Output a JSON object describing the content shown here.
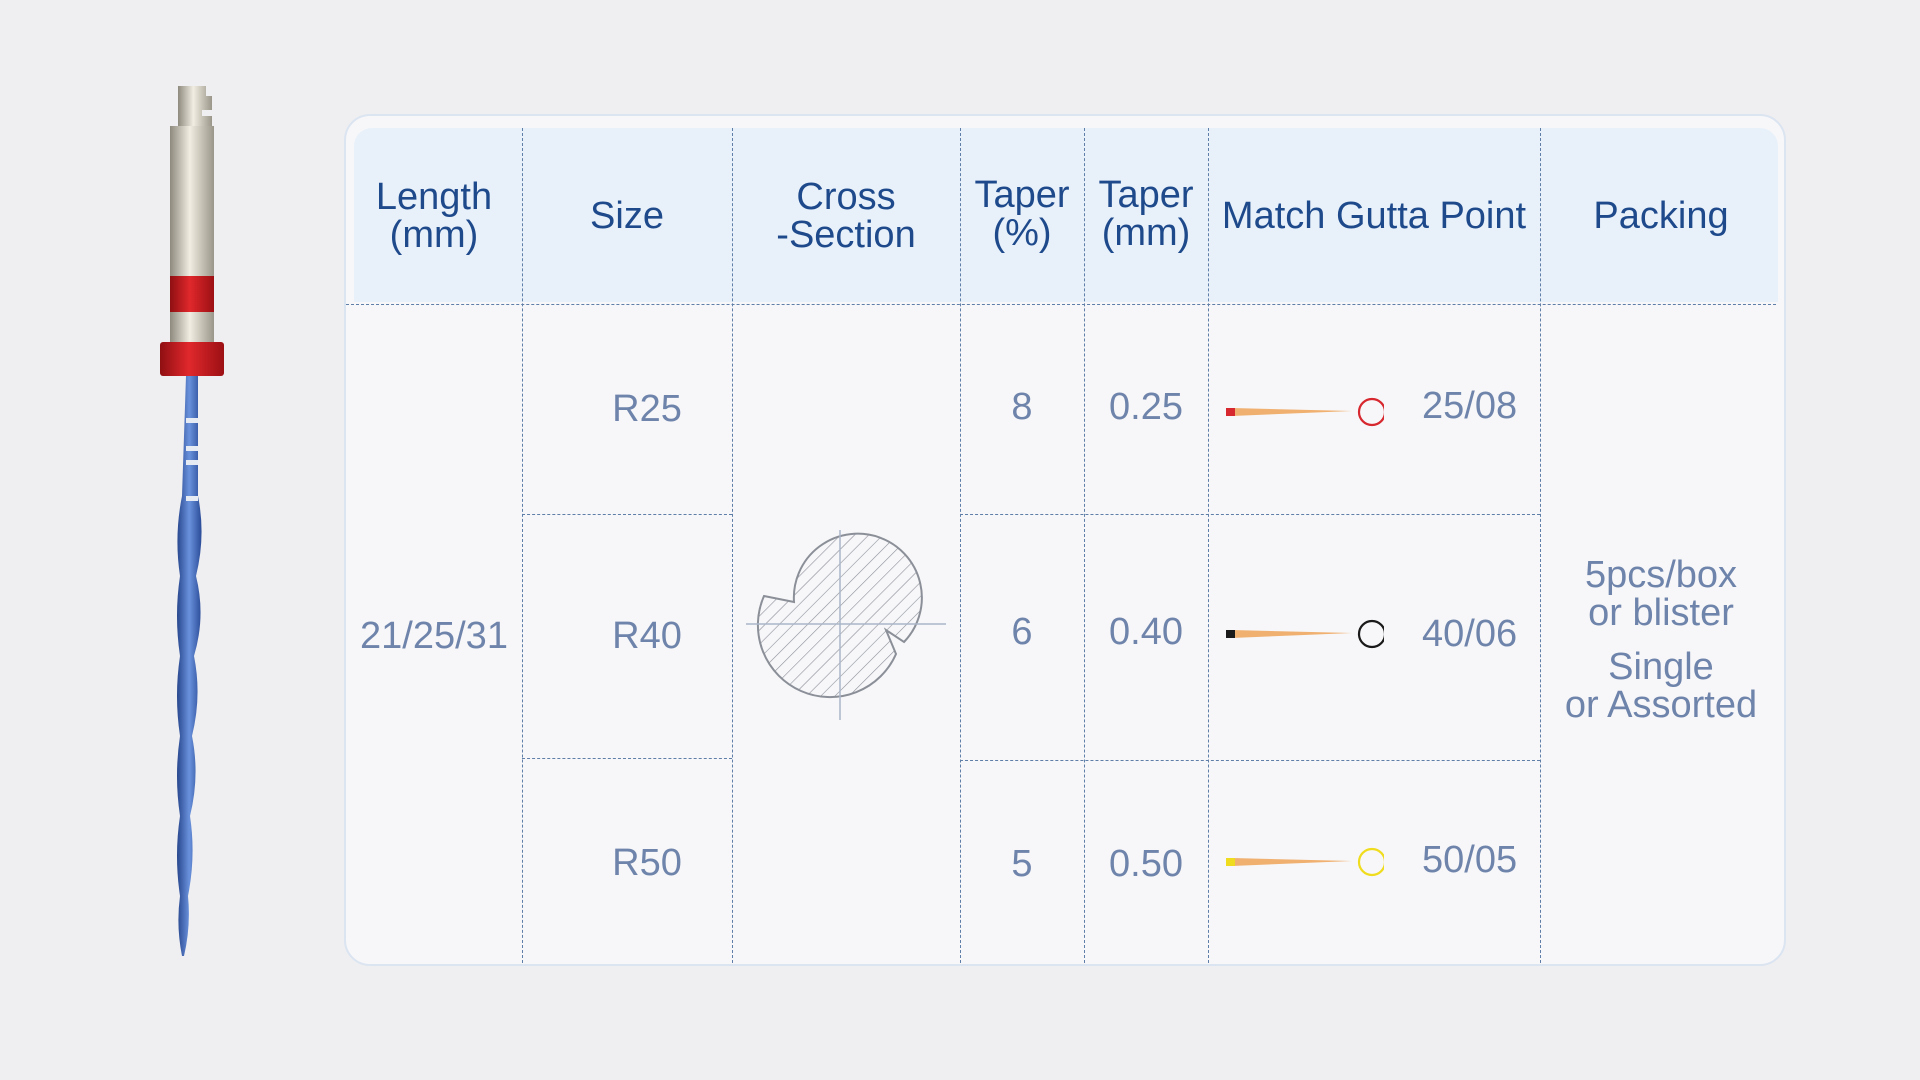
{
  "table": {
    "headers": {
      "length": "Length\n(mm)",
      "size": "Size",
      "cross_section": "Cross\n-Section",
      "taper_pct": "Taper\n(%)",
      "taper_mm": "Taper\n(mm)",
      "match_gutta_point": "Match Gutta Point",
      "packing": "Packing"
    },
    "length_value": "21/25/31",
    "rows": [
      {
        "size": "R25",
        "taper_pct": "8",
        "taper_mm": "0.25",
        "gutta_point": "25/08",
        "gutta_color": "#d6282e"
      },
      {
        "size": "R40",
        "taper_pct": "6",
        "taper_mm": "0.40",
        "gutta_point": "40/06",
        "gutta_color": "#1a1a1a"
      },
      {
        "size": "R50",
        "taper_pct": "5",
        "taper_mm": "0.50",
        "gutta_point": "50/05",
        "gutta_color": "#f0dc1e"
      }
    ],
    "packing": {
      "line1": "5pcs/box",
      "line2": "or blister",
      "line3": "Single",
      "line4": "or Assorted"
    }
  },
  "colors": {
    "header_text": "#1e4a8c",
    "body_text": "#6f84ab",
    "file_shaft": "#3d63b5",
    "handle_band": "#c8171c"
  }
}
